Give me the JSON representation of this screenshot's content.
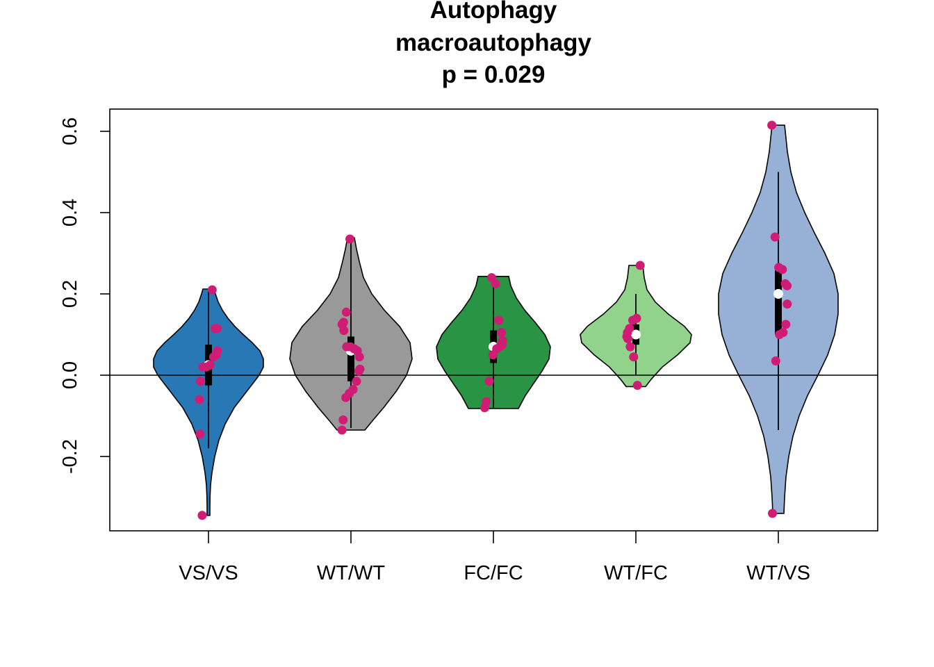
{
  "chart_data": {
    "type": "violin",
    "title": [
      "Autophagy",
      "macroautophagy",
      "p = 0.029"
    ],
    "xlabel": "",
    "ylabel": "",
    "categories": [
      "VS/VS",
      "WT/WT",
      "FC/FC",
      "WT/FC",
      "WT/VS"
    ],
    "ylim": [
      -0.38,
      0.655
    ],
    "yticks": [
      -0.2,
      0.0,
      0.2,
      0.4,
      0.6
    ],
    "ytick_labels": [
      "-0.2",
      "0.0",
      "0.2",
      "0.4",
      "0.6"
    ],
    "reference_line_y": 0.0,
    "grid": false,
    "legend": "none",
    "colors": {
      "violins": [
        "#2878B5",
        "#999999",
        "#2A9445",
        "#91D38A",
        "#97B0D6"
      ],
      "points": "#D01C75",
      "median_marker": "#FFFFFF",
      "box": "#000000"
    },
    "series": [
      {
        "category": "VS/VS",
        "whisker": [
          -0.18,
          0.21
        ],
        "box": [
          -0.025,
          0.075
        ],
        "median": 0.025,
        "violin_shape": [
          [
            -0.345,
            0.02
          ],
          [
            -0.33,
            0.02
          ],
          [
            -0.3,
            0.022
          ],
          [
            -0.27,
            0.03
          ],
          [
            -0.24,
            0.05
          ],
          [
            -0.2,
            0.09
          ],
          [
            -0.16,
            0.15
          ],
          [
            -0.12,
            0.24
          ],
          [
            -0.08,
            0.37
          ],
          [
            -0.04,
            0.55
          ],
          [
            0.0,
            0.73
          ],
          [
            0.02,
            0.79
          ],
          [
            0.04,
            0.79
          ],
          [
            0.06,
            0.74
          ],
          [
            0.08,
            0.63
          ],
          [
            0.1,
            0.5
          ],
          [
            0.12,
            0.38
          ],
          [
            0.14,
            0.28
          ],
          [
            0.16,
            0.2
          ],
          [
            0.18,
            0.14
          ],
          [
            0.2,
            0.1
          ],
          [
            0.212,
            0.08
          ]
        ],
        "points": [
          0.21,
          0.115,
          0.115,
          0.06,
          0.05,
          0.045,
          0.025,
          0.02,
          0.02,
          -0.015,
          -0.06,
          -0.145,
          -0.345
        ]
      },
      {
        "category": "WT/WT",
        "whisker": [
          -0.13,
          0.335
        ],
        "box": [
          -0.015,
          0.095
        ],
        "median": 0.06,
        "violin_shape": [
          [
            -0.135,
            0.2
          ],
          [
            -0.11,
            0.32
          ],
          [
            -0.08,
            0.47
          ],
          [
            -0.04,
            0.65
          ],
          [
            0.0,
            0.8
          ],
          [
            0.04,
            0.88
          ],
          [
            0.08,
            0.85
          ],
          [
            0.12,
            0.7
          ],
          [
            0.16,
            0.48
          ],
          [
            0.2,
            0.3
          ],
          [
            0.24,
            0.18
          ],
          [
            0.28,
            0.12
          ],
          [
            0.31,
            0.08
          ],
          [
            0.338,
            0.05
          ]
        ],
        "points": [
          0.335,
          0.155,
          0.13,
          0.125,
          0.125,
          0.11,
          0.07,
          0.07,
          0.065,
          0.06,
          0.045,
          0.015,
          0.01,
          -0.015,
          -0.035,
          -0.045,
          -0.055,
          -0.11,
          -0.135
        ]
      },
      {
        "category": "FC/FC",
        "whisker": [
          -0.08,
          0.24
        ],
        "box": [
          0.03,
          0.11
        ],
        "median": 0.07,
        "violin_shape": [
          [
            -0.082,
            0.36
          ],
          [
            -0.05,
            0.46
          ],
          [
            -0.02,
            0.58
          ],
          [
            0.01,
            0.7
          ],
          [
            0.04,
            0.8
          ],
          [
            0.07,
            0.82
          ],
          [
            0.1,
            0.74
          ],
          [
            0.13,
            0.6
          ],
          [
            0.16,
            0.45
          ],
          [
            0.19,
            0.33
          ],
          [
            0.22,
            0.25
          ],
          [
            0.243,
            0.22
          ]
        ],
        "points": [
          0.24,
          0.225,
          0.135,
          0.105,
          0.085,
          0.075,
          0.07,
          0.065,
          0.05,
          -0.015,
          -0.065,
          -0.08
        ]
      },
      {
        "category": "WT/FC",
        "whisker": [
          0.0,
          0.2
        ],
        "box": [
          0.075,
          0.125
        ],
        "median": 0.1,
        "violin_shape": [
          [
            -0.028,
            0.14
          ],
          [
            -0.01,
            0.22
          ],
          [
            0.02,
            0.38
          ],
          [
            0.05,
            0.6
          ],
          [
            0.08,
            0.78
          ],
          [
            0.1,
            0.8
          ],
          [
            0.12,
            0.7
          ],
          [
            0.15,
            0.47
          ],
          [
            0.18,
            0.28
          ],
          [
            0.21,
            0.16
          ],
          [
            0.24,
            0.12
          ],
          [
            0.27,
            0.1
          ]
        ],
        "points": [
          0.27,
          0.14,
          0.135,
          0.115,
          0.105,
          0.095,
          0.09,
          0.07,
          0.045,
          -0.025
        ]
      },
      {
        "category": "WT/VS",
        "whisker": [
          -0.135,
          0.5
        ],
        "box": [
          0.1,
          0.265
        ],
        "median": 0.2,
        "violin_shape": [
          [
            -0.34,
            0.08
          ],
          [
            -0.3,
            0.09
          ],
          [
            -0.25,
            0.11
          ],
          [
            -0.2,
            0.15
          ],
          [
            -0.15,
            0.21
          ],
          [
            -0.1,
            0.3
          ],
          [
            -0.05,
            0.42
          ],
          [
            0.0,
            0.57
          ],
          [
            0.05,
            0.71
          ],
          [
            0.1,
            0.81
          ],
          [
            0.15,
            0.86
          ],
          [
            0.2,
            0.86
          ],
          [
            0.25,
            0.8
          ],
          [
            0.3,
            0.67
          ],
          [
            0.35,
            0.52
          ],
          [
            0.4,
            0.38
          ],
          [
            0.45,
            0.26
          ],
          [
            0.5,
            0.18
          ],
          [
            0.55,
            0.13
          ],
          [
            0.6,
            0.1
          ],
          [
            0.615,
            0.09
          ]
        ],
        "points": [
          0.615,
          0.34,
          0.265,
          0.26,
          0.225,
          0.22,
          0.175,
          0.125,
          0.105,
          0.1,
          0.035,
          -0.34
        ]
      }
    ]
  }
}
